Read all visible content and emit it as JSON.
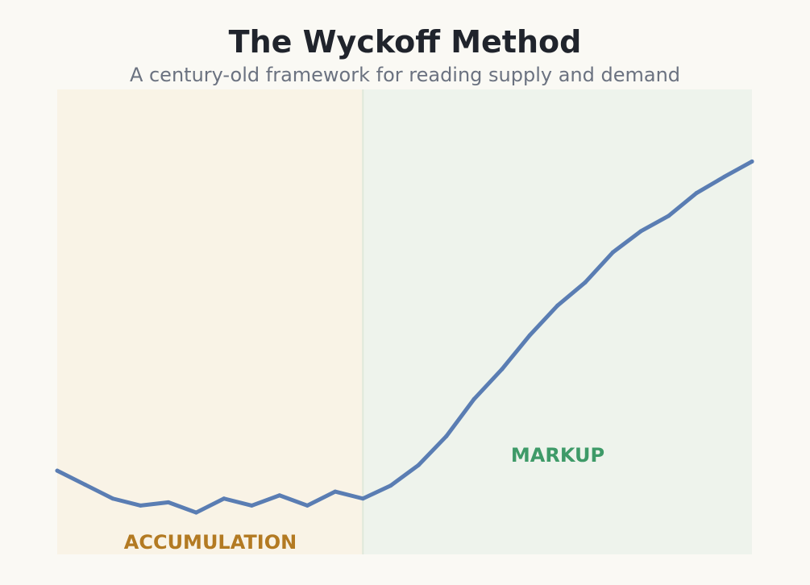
{
  "title": "The Wyckoff Method",
  "subtitle": "A century-old framework for reading supply and demand",
  "colors": {
    "line": "#5a7db3",
    "accumulation_fill": "#f9f3e6",
    "accumulation_label": "#b37a22",
    "markup_fill": "#eef3ec",
    "markup_label": "#3e9a68",
    "divider": "#dfe8da"
  },
  "chart_data": {
    "type": "line",
    "title": "The Wyckoff Method",
    "subtitle": "A century-old framework for reading supply and demand",
    "xlabel": "",
    "ylabel": "",
    "grid": false,
    "legend": false,
    "xlim": [
      0,
      25
    ],
    "ylim": [
      0,
      100
    ],
    "x": [
      0,
      1,
      2,
      3,
      4,
      5,
      6,
      7,
      8,
      9,
      10,
      11,
      12,
      13,
      14,
      15,
      16,
      17,
      18,
      19,
      20,
      21,
      22,
      23,
      24,
      25
    ],
    "series": [
      {
        "values": [
          18,
          15,
          12,
          10.5,
          11.2,
          9,
          12,
          10.5,
          12.7,
          10.5,
          13.5,
          12,
          14.8,
          19.2,
          25.4,
          33.4,
          39.8,
          47.1,
          53.5,
          58.5,
          65,
          69.5,
          72.8,
          77.7,
          81.2,
          84.5
        ]
      }
    ],
    "phases": [
      {
        "label": "ACCUMULATION",
        "x_start": 0,
        "x_end": 11
      },
      {
        "label": "MARKUP",
        "x_start": 11,
        "x_end": 25
      }
    ]
  }
}
